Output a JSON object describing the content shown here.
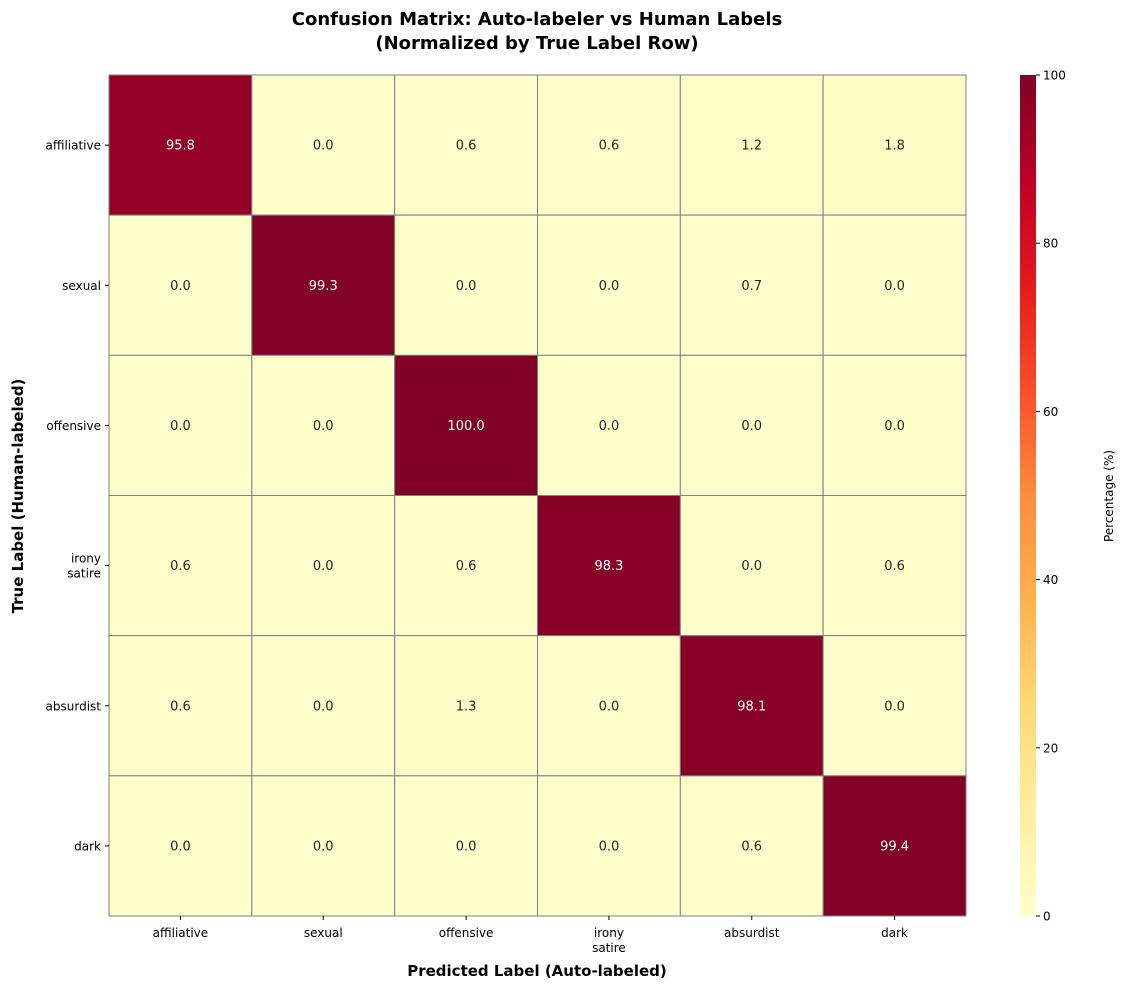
{
  "chart_data": {
    "type": "heatmap",
    "title": "Confusion Matrix: Auto-labeler vs Human Labels",
    "subtitle": "(Normalized by True Label Row)",
    "xlabel": "Predicted Label (Auto-labeled)",
    "ylabel": "True Label (Human-labeled)",
    "x_categories": [
      "affiliative",
      "sexual",
      "offensive",
      "irony\nsatire",
      "absurdist",
      "dark"
    ],
    "y_categories": [
      "affiliative",
      "sexual",
      "offensive",
      "irony\nsatire",
      "absurdist",
      "dark"
    ],
    "values": [
      [
        95.8,
        0.0,
        0.6,
        0.6,
        1.2,
        1.8
      ],
      [
        0.0,
        99.3,
        0.0,
        0.0,
        0.7,
        0.0
      ],
      [
        0.0,
        0.0,
        100.0,
        0.0,
        0.0,
        0.0
      ],
      [
        0.6,
        0.0,
        0.6,
        98.3,
        0.0,
        0.6
      ],
      [
        0.6,
        0.0,
        1.3,
        0.0,
        98.1,
        0.0
      ],
      [
        0.0,
        0.0,
        0.0,
        0.0,
        0.6,
        99.4
      ]
    ],
    "colormap": "YlOrRd",
    "colormap_stops": [
      "#ffffcc",
      "#ffeda0",
      "#fed976",
      "#feb24c",
      "#fd8d3c",
      "#fc4e2a",
      "#e31a1c",
      "#bd0026",
      "#800026"
    ],
    "vmin": 0,
    "vmax": 100,
    "colorbar": {
      "label": "Percentage (%)",
      "ticks": [
        0,
        20,
        40,
        60,
        80,
        100
      ]
    },
    "cell_border_color": "#808080",
    "legend_placement": "right"
  }
}
